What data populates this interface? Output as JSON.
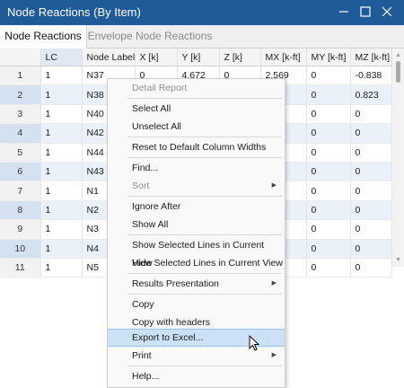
{
  "window": {
    "title": "Node Reactions (By Item)"
  },
  "tabs": [
    {
      "label": "Node Reactions"
    },
    {
      "label": "Envelope Node Reactions"
    }
  ],
  "table": {
    "headers": [
      "LC",
      "Node Label",
      "X [k]",
      "Y [k]",
      "Z [k]",
      "MX [k-ft]",
      "MY [k-ft]",
      "MZ [k-ft]"
    ],
    "rows": [
      {
        "n": "1",
        "cells": [
          "1",
          "N37",
          "0",
          "4.672",
          "0",
          "2.569",
          "0",
          "-0.838"
        ]
      },
      {
        "n": "2",
        "cells": [
          "1",
          "N38",
          "",
          "",
          "",
          "",
          "0",
          "0.823"
        ]
      },
      {
        "n": "3",
        "cells": [
          "1",
          "N40",
          "",
          "",
          "",
          "",
          "0",
          "0"
        ]
      },
      {
        "n": "4",
        "cells": [
          "1",
          "N42",
          "",
          "",
          "",
          "",
          "0",
          "0"
        ]
      },
      {
        "n": "5",
        "cells": [
          "1",
          "N44",
          "",
          "",
          "",
          "",
          "0",
          "0"
        ]
      },
      {
        "n": "6",
        "cells": [
          "1",
          "N43",
          "",
          "",
          "",
          "",
          "0",
          "0"
        ]
      },
      {
        "n": "7",
        "cells": [
          "1",
          "N1",
          "",
          "",
          "",
          "",
          "0",
          "0"
        ]
      },
      {
        "n": "8",
        "cells": [
          "1",
          "N2",
          "",
          "",
          "",
          "",
          "0",
          "0"
        ]
      },
      {
        "n": "9",
        "cells": [
          "1",
          "N3",
          "",
          "",
          "",
          "",
          "0",
          "0"
        ]
      },
      {
        "n": "10",
        "cells": [
          "1",
          "N4",
          "",
          "",
          "",
          "",
          "0",
          "0"
        ]
      },
      {
        "n": "11",
        "cells": [
          "1",
          "N5",
          "",
          "",
          "",
          "",
          "0",
          "0"
        ]
      }
    ]
  },
  "menu": {
    "detail_report": "Detail Report",
    "select_all": "Select All",
    "unselect_all": "Unselect All",
    "reset_widths": "Reset to Default Column Widths",
    "find": "Find...",
    "sort": "Sort",
    "ignore_after": "Ignore After",
    "show_all": "Show All",
    "show_selected": "Show Selected Lines in Current View",
    "hide_selected": "Hide Selected Lines in Current View",
    "results_presentation": "Results Presentation",
    "copy": "Copy",
    "copy_headers": "Copy with headers",
    "export_excel": "Export to Excel...",
    "print": "Print",
    "help": "Help..."
  },
  "colors": {
    "titlebar": "#1f5b99",
    "highlight": "#cce0f6",
    "selected_row": "#eaf1f9"
  }
}
